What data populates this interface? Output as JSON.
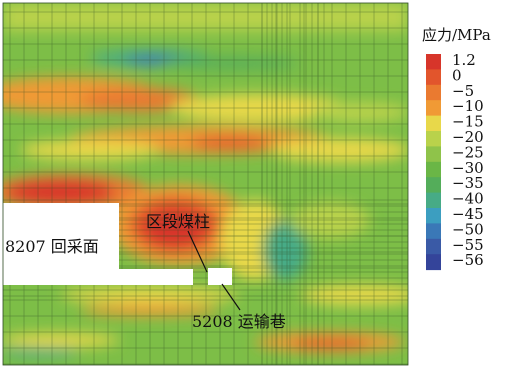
{
  "legend": {
    "title": "应力/MPa",
    "items": [
      {
        "label": "1.2",
        "color": "#d7352a"
      },
      {
        "label": "0",
        "color": "#e2552c"
      },
      {
        "label": "−5",
        "color": "#ea7a30"
      },
      {
        "label": "−10",
        "color": "#f09a35"
      },
      {
        "label": "−15",
        "color": "#e8d84a"
      },
      {
        "label": "−20",
        "color": "#b9d24b"
      },
      {
        "label": "−25",
        "color": "#8fc34a"
      },
      {
        "label": "−30",
        "color": "#6ab646"
      },
      {
        "label": "−35",
        "color": "#54ad5a"
      },
      {
        "label": "−40",
        "color": "#47ab86"
      },
      {
        "label": "−45",
        "color": "#3c9ec0"
      },
      {
        "label": "−50",
        "color": "#3a78b7"
      },
      {
        "label": "−55",
        "color": "#3a5aa6"
      },
      {
        "label": "−56",
        "color": "#34449a"
      }
    ]
  },
  "annotations": {
    "face": "8207 回采面",
    "pillar": "区段煤柱",
    "roadway": "5208 运输巷"
  },
  "colors": {
    "base": "#7dbe47",
    "grid": "#2d4a22",
    "opening": "#ffffff"
  }
}
